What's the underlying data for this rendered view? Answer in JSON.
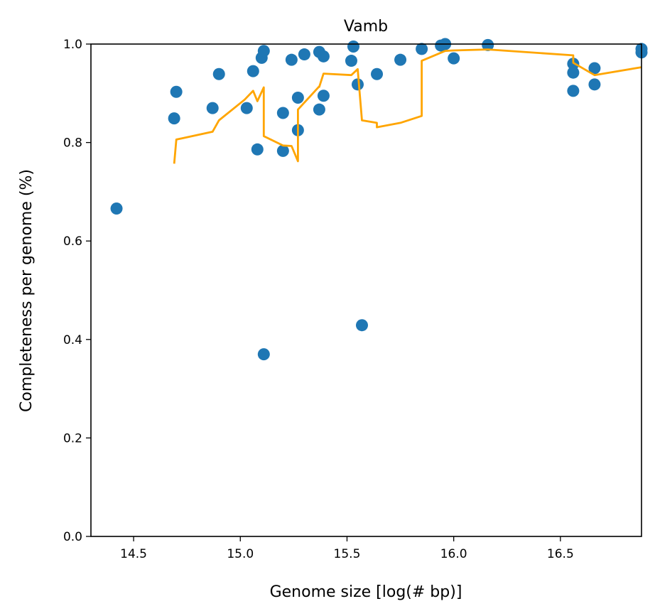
{
  "chart_data": {
    "type": "scatter",
    "title": "Vamb",
    "xlabel": "Genome size [log(# bp)]",
    "ylabel": "Completeness per genome (%)",
    "xlim": [
      14.3,
      16.88
    ],
    "ylim": [
      0.0,
      1.0
    ],
    "xticks": [
      14.5,
      15.0,
      15.5,
      16.0,
      16.5
    ],
    "yticks": [
      0.0,
      0.2,
      0.4,
      0.6,
      0.8,
      1.0
    ],
    "xtick_labels": [
      "14.5",
      "15.0",
      "15.5",
      "16.0",
      "16.5"
    ],
    "ytick_labels": [
      "0.0",
      "0.2",
      "0.4",
      "0.6",
      "0.8",
      "1.0"
    ],
    "grid": false,
    "series": [
      {
        "kind": "scatter",
        "color": "#1f77b4",
        "points": [
          [
            14.42,
            0.666
          ],
          [
            14.69,
            0.849
          ],
          [
            14.7,
            0.903
          ],
          [
            14.87,
            0.87
          ],
          [
            14.9,
            0.939
          ],
          [
            15.03,
            0.87
          ],
          [
            15.06,
            0.945
          ],
          [
            15.08,
            0.786
          ],
          [
            15.1,
            0.972
          ],
          [
            15.11,
            0.37
          ],
          [
            15.11,
            0.986
          ],
          [
            15.2,
            0.86
          ],
          [
            15.2,
            0.783
          ],
          [
            15.24,
            0.968
          ],
          [
            15.27,
            0.891
          ],
          [
            15.27,
            0.825
          ],
          [
            15.3,
            0.979
          ],
          [
            15.37,
            0.984
          ],
          [
            15.37,
            0.867
          ],
          [
            15.39,
            0.975
          ],
          [
            15.39,
            0.895
          ],
          [
            15.52,
            0.966
          ],
          [
            15.53,
            0.995
          ],
          [
            15.55,
            0.918
          ],
          [
            15.57,
            0.429
          ],
          [
            15.64,
            0.939
          ],
          [
            15.75,
            0.968
          ],
          [
            15.85,
            0.99
          ],
          [
            15.94,
            0.997
          ],
          [
            15.96,
            1.0
          ],
          [
            16.0,
            0.971
          ],
          [
            16.16,
            0.998
          ],
          [
            16.56,
            0.96
          ],
          [
            16.56,
            0.942
          ],
          [
            16.56,
            0.905
          ],
          [
            16.66,
            0.951
          ],
          [
            16.66,
            0.918
          ],
          [
            16.88,
            0.99
          ],
          [
            16.88,
            0.983
          ]
        ]
      },
      {
        "kind": "line",
        "color": "#ffa500",
        "points": [
          [
            14.69,
            0.757
          ],
          [
            14.7,
            0.806
          ],
          [
            14.87,
            0.822
          ],
          [
            14.9,
            0.845
          ],
          [
            15.02,
            0.887
          ],
          [
            15.06,
            0.905
          ],
          [
            15.08,
            0.884
          ],
          [
            15.11,
            0.912
          ],
          [
            15.11,
            0.813
          ],
          [
            15.2,
            0.794
          ],
          [
            15.24,
            0.793
          ],
          [
            15.27,
            0.762
          ],
          [
            15.27,
            0.867
          ],
          [
            15.37,
            0.914
          ],
          [
            15.37,
            0.913
          ],
          [
            15.39,
            0.94
          ],
          [
            15.52,
            0.937
          ],
          [
            15.55,
            0.949
          ],
          [
            15.57,
            0.845
          ],
          [
            15.64,
            0.84
          ],
          [
            15.64,
            0.831
          ],
          [
            15.75,
            0.84
          ],
          [
            15.85,
            0.854
          ],
          [
            15.85,
            0.966
          ],
          [
            15.96,
            0.986
          ],
          [
            16.0,
            0.987
          ],
          [
            16.16,
            0.989
          ],
          [
            16.56,
            0.977
          ],
          [
            16.56,
            0.962
          ],
          [
            16.66,
            0.937
          ],
          [
            16.88,
            0.953
          ]
        ]
      }
    ]
  }
}
